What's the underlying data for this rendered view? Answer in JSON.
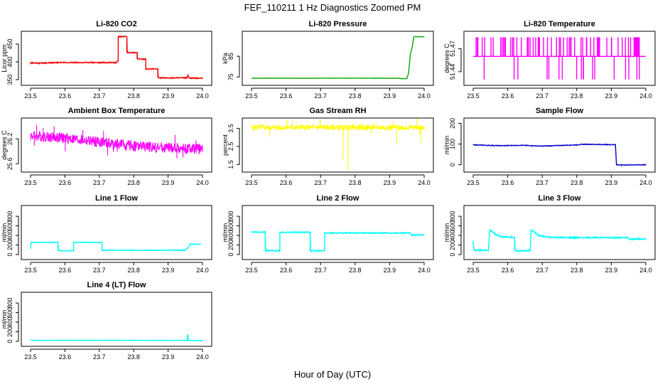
{
  "figure": {
    "title": "FEF_110211  1 Hz Diagnostics Zoomed PM",
    "xlabel": "Hour of Day (UTC)"
  },
  "chart_data": [
    {
      "type": "line",
      "title": "Li-820 CO2",
      "ylabel": "Licor ppm",
      "color": "#ff0000",
      "xlim": [
        23.5,
        24.0
      ],
      "ylim": [
        340,
        480
      ],
      "xticks": [
        "23.5",
        "23.6",
        "23.7",
        "23.8",
        "23.9",
        "24.0"
      ],
      "yticks": [
        {
          "v": 350,
          "label": "350"
        },
        {
          "v": 400,
          "label": "400"
        },
        {
          "v": 450,
          "label": "450"
        }
      ],
      "noise": 1.5,
      "noise_seed": 1,
      "x": [
        23.5,
        23.52,
        23.52,
        23.58,
        23.58,
        23.75,
        23.755,
        23.755,
        23.78,
        23.78,
        23.81,
        23.81,
        23.835,
        23.835,
        23.85,
        23.85,
        23.87,
        23.87,
        23.955,
        23.958,
        23.96,
        23.962,
        24.0
      ],
      "y": [
        397,
        397,
        396,
        398,
        398,
        398,
        404,
        471,
        471,
        426,
        426,
        408,
        408,
        380,
        380,
        380,
        380,
        355,
        355,
        362,
        356,
        354,
        354
      ]
    },
    {
      "type": "line",
      "title": "Li-820 Pressure",
      "ylabel": "kPa",
      "color": "#00aa00",
      "xlim": [
        23.5,
        24.0
      ],
      "ylim": [
        72,
        96
      ],
      "xticks": [
        "23.5",
        "23.6",
        "23.7",
        "23.8",
        "23.9",
        "24.0"
      ],
      "yticks": [
        {
          "v": 75,
          "label": "75"
        },
        {
          "v": 85,
          "label": "85"
        }
      ],
      "noise": 0.05,
      "noise_seed": 2,
      "x": [
        23.5,
        23.93,
        23.93,
        23.95,
        23.955,
        23.96,
        23.965,
        23.97,
        23.975,
        24.0
      ],
      "y": [
        74.4,
        74.4,
        74.2,
        74.2,
        77,
        86,
        89,
        94.4,
        94.4,
        94.4
      ]
    },
    {
      "type": "spikes",
      "title": "Li-820 Temperature",
      "ylabel": "degrees C",
      "color": "#ff00ff",
      "xlim": [
        23.5,
        24.0
      ],
      "ylim": [
        51.425,
        51.49
      ],
      "xticks": [
        "23.5",
        "23.6",
        "23.7",
        "23.8",
        "23.9",
        "24.0"
      ],
      "yticks": [
        {
          "v": 51.44,
          "label": "51.44"
        },
        {
          "v": 51.47,
          "label": "51.47"
        }
      ],
      "base": 51.46,
      "up": 51.485,
      "down": 51.43,
      "up_count": 70,
      "down_count": 18,
      "noise_seed": 3
    },
    {
      "type": "band",
      "title": "Ambient Box Temperature",
      "ylabel": "degrees C",
      "color": "#ff00ff",
      "xlim": [
        23.5,
        24.0
      ],
      "ylim": [
        25.45,
        26.65
      ],
      "xticks": [
        "23.5",
        "23.6",
        "23.7",
        "23.8",
        "23.9",
        "24.0"
      ],
      "yticks": [
        {
          "v": 25.6,
          "label": "25.6"
        },
        {
          "v": 26.2,
          "label": "26.2"
        }
      ],
      "trend_x": [
        23.5,
        23.6,
        23.7,
        23.8,
        23.9,
        24.0
      ],
      "trend_y": [
        26.28,
        26.22,
        26.12,
        26.03,
        25.98,
        25.95
      ],
      "amp": 0.13,
      "spike_amp": 0.3,
      "spike_count": 14,
      "noise_seed": 4
    },
    {
      "type": "band",
      "title": "Gas Stream RH",
      "ylabel": "percent",
      "color": "#ffff00",
      "xlim": [
        23.5,
        24.0
      ],
      "ylim": [
        1.2,
        3.95
      ],
      "xticks": [
        "23.5",
        "23.6",
        "23.7",
        "23.8",
        "23.9",
        "24.0"
      ],
      "yticks": [
        {
          "v": 1.5,
          "label": "1.5"
        },
        {
          "v": 2.5,
          "label": "2.5"
        },
        {
          "v": 3.5,
          "label": "3.5"
        }
      ],
      "trend_x": [
        23.5,
        24.0
      ],
      "trend_y": [
        3.55,
        3.55
      ],
      "amp": 0.15,
      "spike_amp": 0.5,
      "spike_count": 8,
      "noise_seed": 5,
      "dips": [
        {
          "x": 23.765,
          "y": 1.8
        },
        {
          "x": 23.78,
          "y": 1.2
        },
        {
          "x": 23.92,
          "y": 2.6
        },
        {
          "x": 23.99,
          "y": 2.7
        }
      ]
    },
    {
      "type": "line",
      "title": "Sample Flow",
      "ylabel": "ml/min",
      "color": "#0000cc",
      "xlim": [
        23.5,
        24.0
      ],
      "ylim": [
        -25,
        215
      ],
      "xticks": [
        "23.5",
        "23.6",
        "23.7",
        "23.8",
        "23.9",
        "24.0"
      ],
      "yticks": [
        {
          "v": 0,
          "label": "0"
        },
        {
          "v": 100,
          "label": "100"
        },
        {
          "v": 200,
          "label": "200"
        }
      ],
      "noise": 1.5,
      "noise_seed": 6,
      "x": [
        23.5,
        23.58,
        23.64,
        23.7,
        23.8,
        23.82,
        23.9,
        23.912,
        23.915,
        23.93,
        24.0
      ],
      "y": [
        96,
        92,
        94,
        90,
        96,
        99,
        97,
        97,
        0,
        -1,
        0
      ]
    },
    {
      "type": "line",
      "title": "Line 1 Flow",
      "ylabel": "ml/min",
      "color": "#00ffff",
      "xlim": [
        23.5,
        24.0
      ],
      "ylim": [
        -60,
        980
      ],
      "xticks": [
        "23.5",
        "23.6",
        "23.7",
        "23.8",
        "23.9",
        "24.0"
      ],
      "yticks": [
        {
          "v": 0,
          "label": "0"
        },
        {
          "v": 200,
          "label": "200"
        },
        {
          "v": 400,
          "label": "400"
        },
        {
          "v": 600,
          "label": "600"
        },
        {
          "v": 800,
          "label": "800"
        }
      ],
      "noise": 7,
      "noise_seed": 7,
      "x": [
        23.5,
        23.502,
        23.58,
        23.58,
        23.625,
        23.625,
        23.708,
        23.708,
        23.95,
        23.96,
        23.965,
        23.995
      ],
      "y": [
        120,
        255,
        255,
        80,
        80,
        255,
        255,
        90,
        90,
        160,
        215,
        215
      ]
    },
    {
      "type": "line",
      "title": "Line 2 Flow",
      "ylabel": "ml/min",
      "color": "#00ffff",
      "xlim": [
        23.5,
        24.0
      ],
      "ylim": [
        -60,
        980
      ],
      "xticks": [
        "23.5",
        "23.6",
        "23.7",
        "23.8",
        "23.9",
        "24.0"
      ],
      "yticks": [
        {
          "v": 0,
          "label": "0"
        },
        {
          "v": 200,
          "label": "200"
        },
        {
          "v": 400,
          "label": "400"
        },
        {
          "v": 600,
          "label": "600"
        },
        {
          "v": 800,
          "label": "800"
        }
      ],
      "noise": 12,
      "noise_seed": 8,
      "x": [
        23.5,
        23.54,
        23.54,
        23.582,
        23.582,
        23.67,
        23.67,
        23.712,
        23.712,
        23.96,
        23.962,
        24.0
      ],
      "y": [
        470,
        470,
        80,
        80,
        465,
        465,
        80,
        80,
        450,
        450,
        410,
        410
      ]
    },
    {
      "type": "line",
      "title": "Line 3 Flow",
      "ylabel": "ml/min",
      "color": "#00ffff",
      "xlim": [
        23.5,
        24.0
      ],
      "ylim": [
        -60,
        980
      ],
      "xticks": [
        "23.5",
        "23.6",
        "23.7",
        "23.8",
        "23.9",
        "24.0"
      ],
      "yticks": [
        {
          "v": 0,
          "label": "0"
        },
        {
          "v": 200,
          "label": "200"
        },
        {
          "v": 400,
          "label": "400"
        },
        {
          "v": 600,
          "label": "600"
        },
        {
          "v": 800,
          "label": "800"
        }
      ],
      "noise": 14,
      "noise_seed": 9,
      "x": [
        23.5,
        23.502,
        23.505,
        23.544,
        23.548,
        23.565,
        23.58,
        23.62,
        23.62,
        23.665,
        23.668,
        23.69,
        23.72,
        23.8,
        23.9,
        23.95,
        23.952,
        24.0
      ],
      "y": [
        280,
        90,
        90,
        90,
        520,
        420,
        370,
        360,
        80,
        80,
        520,
        400,
        360,
        355,
        355,
        350,
        320,
        330
      ]
    },
    {
      "type": "line",
      "title": "Line 4 (LT) Flow",
      "ylabel": "ml/min",
      "color": "#00ffff",
      "xlim": [
        23.5,
        24.0
      ],
      "ylim": [
        -60,
        980
      ],
      "xticks": [
        "23.5",
        "23.6",
        "23.7",
        "23.8",
        "23.9",
        "24.0"
      ],
      "yticks": [
        {
          "v": 0,
          "label": "0"
        },
        {
          "v": 200,
          "label": "200"
        },
        {
          "v": 400,
          "label": "400"
        },
        {
          "v": 600,
          "label": "600"
        },
        {
          "v": 800,
          "label": "800"
        }
      ],
      "noise": 4,
      "noise_seed": 10,
      "x": [
        23.5,
        23.955,
        23.957,
        23.959,
        23.962,
        24.0
      ],
      "y": [
        20,
        20,
        150,
        20,
        18,
        15
      ]
    }
  ]
}
